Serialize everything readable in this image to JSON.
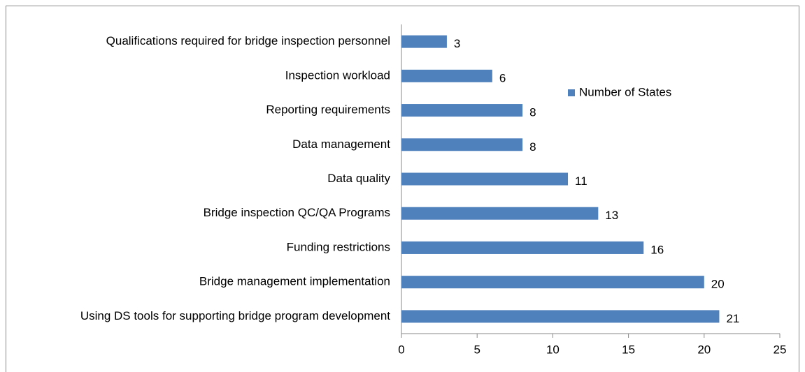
{
  "chart_data": {
    "type": "bar",
    "orientation": "horizontal",
    "categories": [
      "Qualifications required for bridge inspection personnel",
      "Inspection workload",
      "Reporting requirements",
      "Data management",
      "Data quality",
      "Bridge inspection QC/QA Programs",
      "Funding restrictions",
      "Bridge management implementation",
      "Using DS tools for supporting bridge program development"
    ],
    "series": [
      {
        "name": "Number of States",
        "color": "#4f81bd",
        "values": [
          3,
          6,
          8,
          8,
          11,
          13,
          16,
          20,
          21
        ]
      }
    ],
    "xlim": [
      0,
      25
    ],
    "xticks": [
      0,
      5,
      10,
      15,
      20,
      25
    ],
    "grid": false,
    "legend": "upper right"
  }
}
